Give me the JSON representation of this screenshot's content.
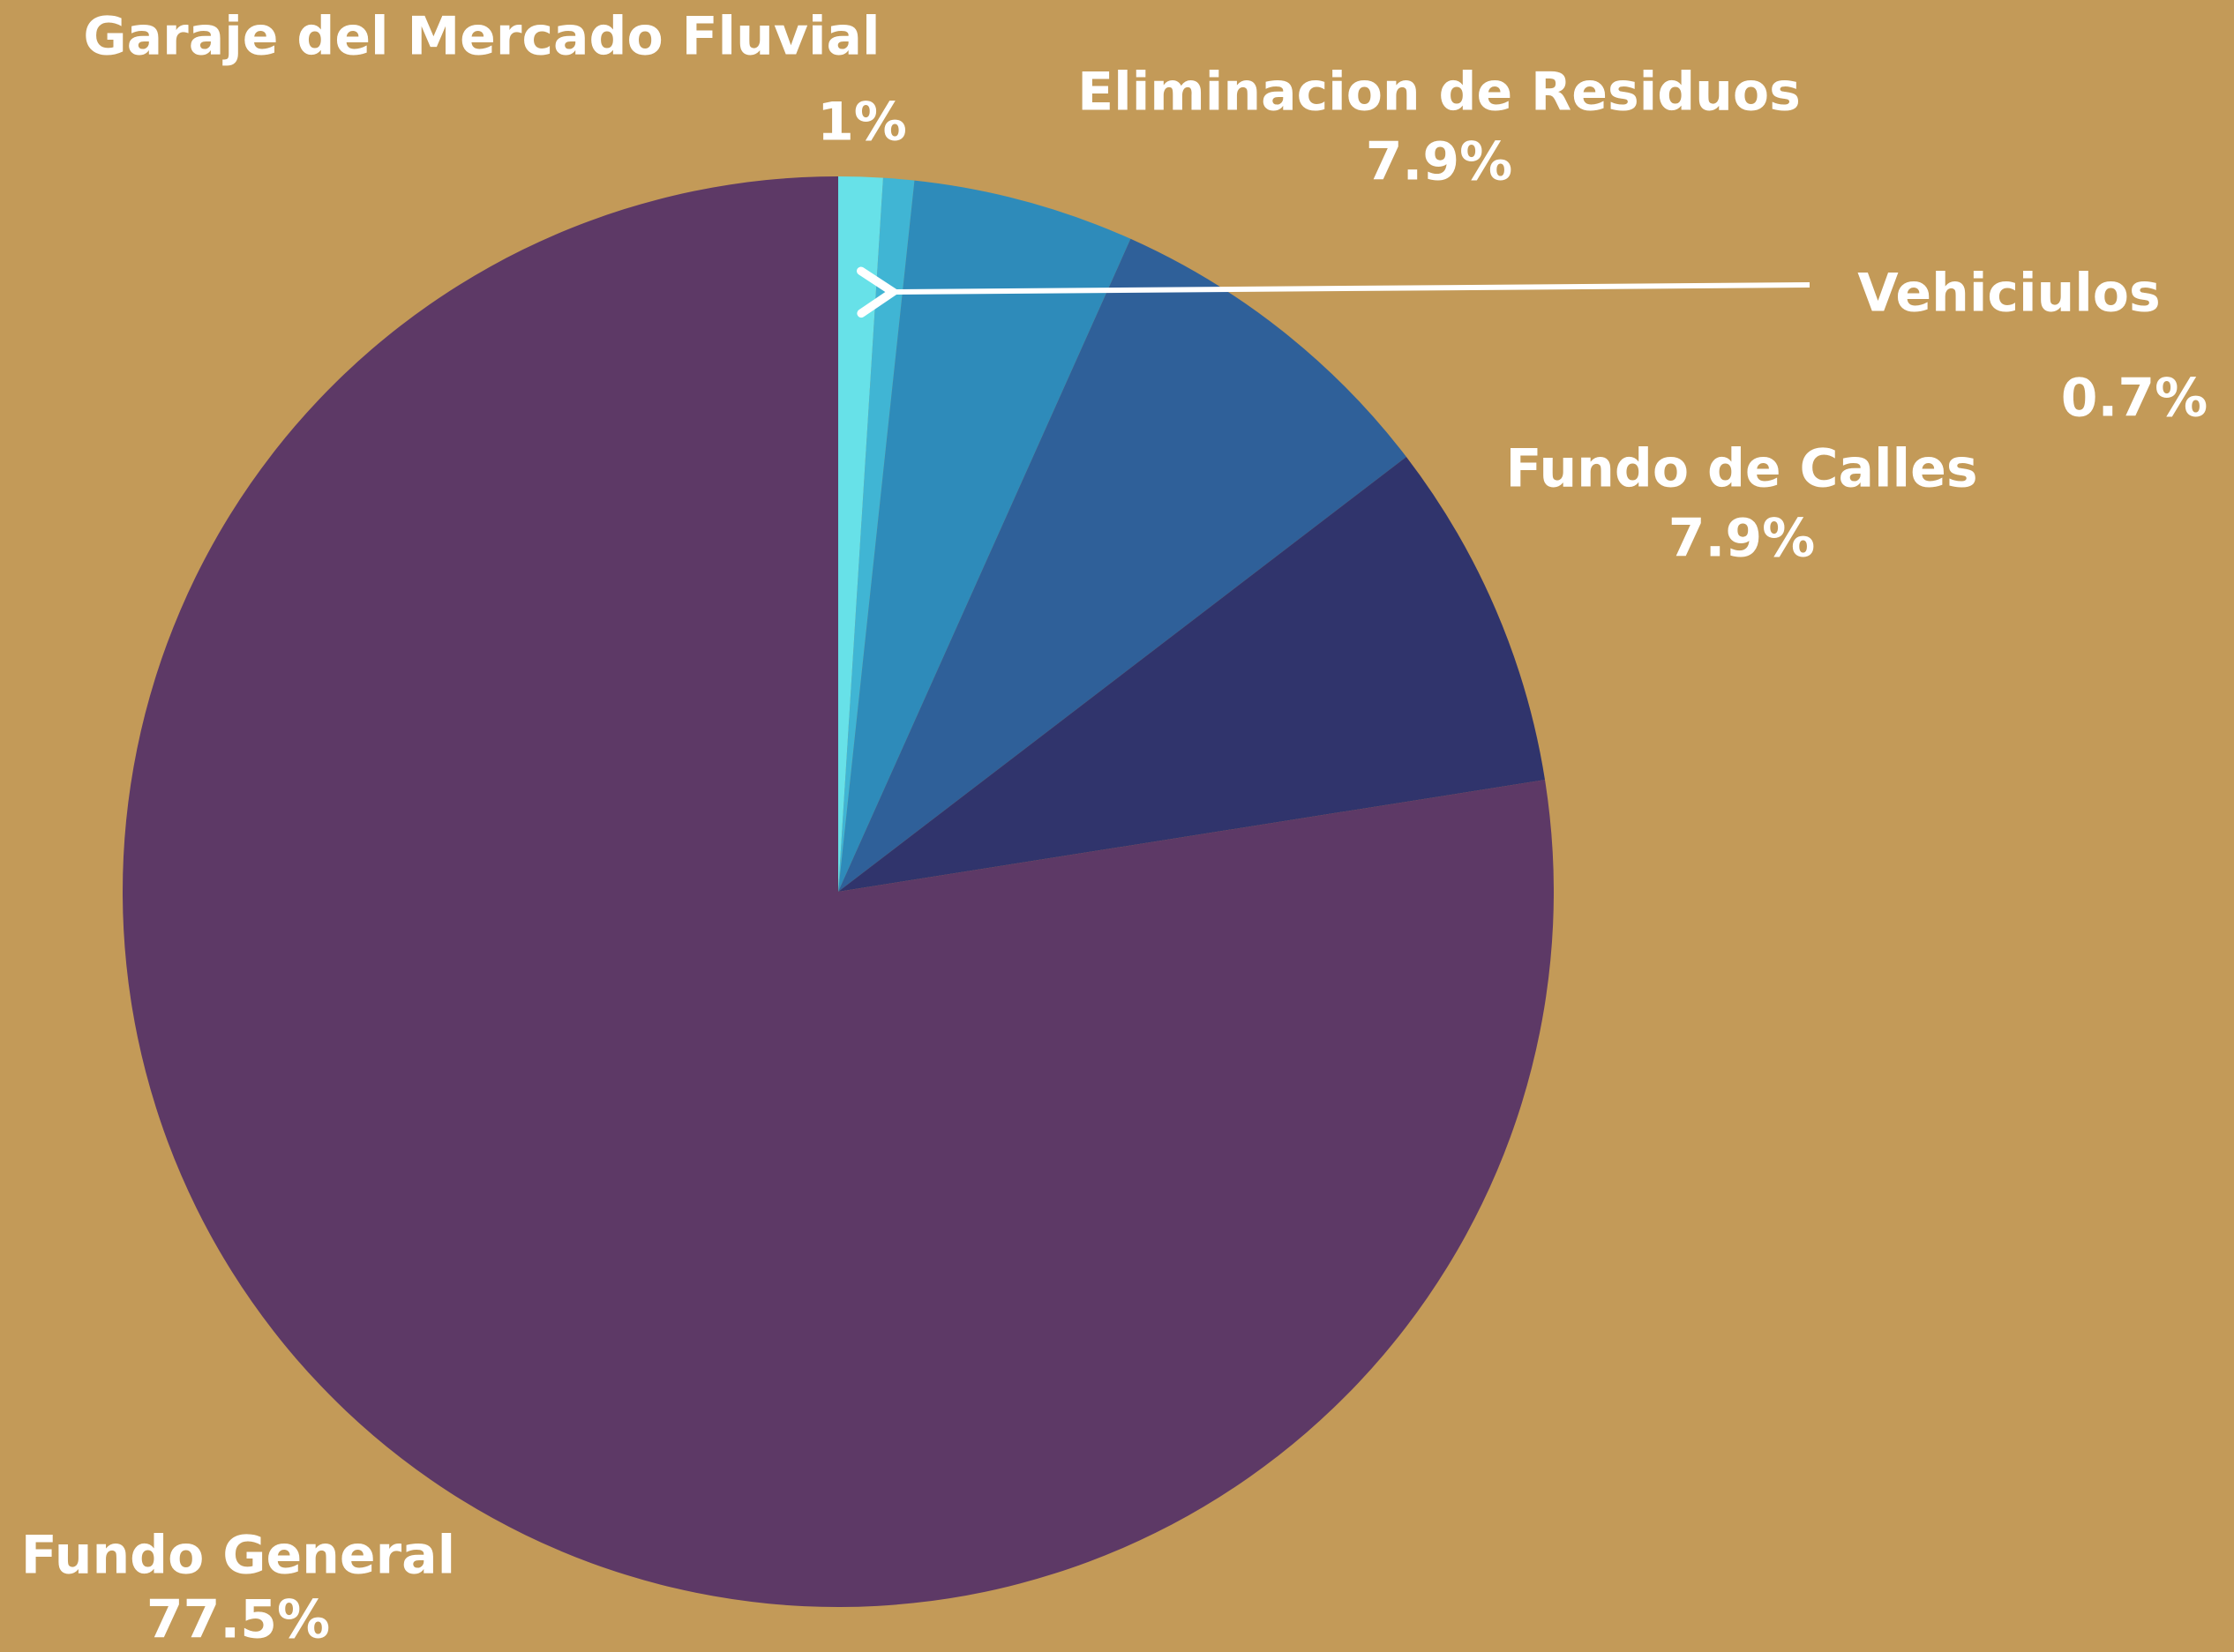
{
  "chart_data": {
    "type": "pie",
    "categories": [
      "Garaje del Mercado Fluvial",
      "Vehiciulos",
      null,
      "Eliminacion de Residuos",
      "Fundo de Calles",
      "Fundo General"
    ],
    "values": [
      1,
      0.7,
      5,
      7.9,
      7.9,
      77.5
    ],
    "value_labels": [
      "1%",
      "0.7%",
      null,
      "7.9%",
      "7.9%",
      "77.5%"
    ],
    "colors": [
      "#67e1e8",
      "#40b5d4",
      "#2e8bba",
      "#2f6099",
      "#30346c",
      "#5d3966"
    ]
  }
}
